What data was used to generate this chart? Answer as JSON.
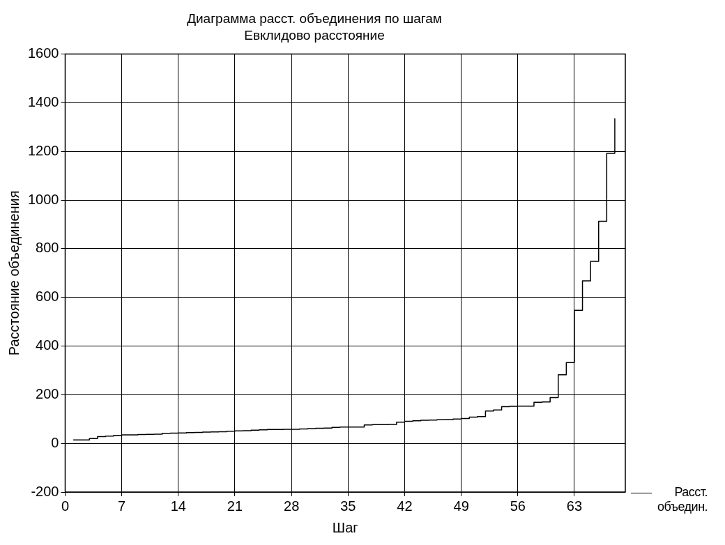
{
  "chart_data": {
    "type": "step",
    "title": "Диаграмма расст. объединения по шагам",
    "subtitle": "Евклидово расстояние",
    "xlabel": "Шаг",
    "ylabel": "Расстояние объединения",
    "xlim": [
      0,
      69.3
    ],
    "xticks": [
      0,
      7,
      14,
      21,
      28,
      35,
      42,
      49,
      56,
      63
    ],
    "ylim": [
      -200,
      1600
    ],
    "yticks": [
      -200,
      0,
      200,
      400,
      600,
      800,
      1000,
      1200,
      1400,
      1600
    ],
    "grid": true,
    "legend": "bottom right",
    "marker": "none",
    "line_style": "solid",
    "x": [
      1,
      2,
      3,
      4,
      5,
      6,
      7,
      8,
      9,
      10,
      11,
      12,
      13,
      14,
      15,
      16,
      17,
      18,
      19,
      20,
      21,
      22,
      23,
      24,
      25,
      26,
      27,
      28,
      29,
      30,
      31,
      32,
      33,
      34,
      35,
      36,
      37,
      38,
      39,
      40,
      41,
      42,
      43,
      44,
      45,
      46,
      47,
      48,
      49,
      50,
      51,
      52,
      53,
      54,
      55,
      56,
      57,
      58,
      59,
      60,
      61,
      62,
      63,
      64,
      65,
      66,
      67,
      68
    ],
    "series": [
      {
        "name": "Расст.\nобъедин.",
        "color": "#000000",
        "values": [
          14,
          14,
          20,
          28,
          30,
          33,
          35,
          35,
          36,
          37,
          38,
          41,
          42,
          43,
          44,
          45,
          46,
          47,
          48,
          50,
          51,
          52,
          54,
          56,
          57,
          57,
          58,
          58,
          59,
          61,
          62,
          63,
          66,
          67,
          67,
          67,
          76,
          77,
          77,
          78,
          87,
          91,
          93,
          95,
          96,
          97,
          98,
          100,
          102,
          108,
          110,
          133,
          137,
          151,
          152,
          153,
          153,
          169,
          170,
          188,
          282,
          332,
          547,
          668,
          748,
          913,
          1192,
          1336
        ]
      }
    ]
  }
}
